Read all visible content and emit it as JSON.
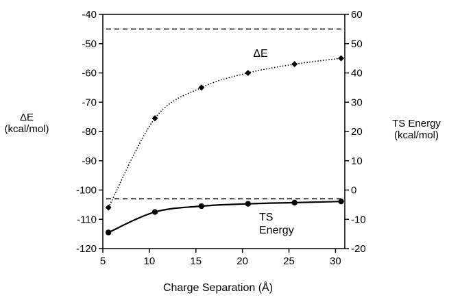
{
  "chart_data": {
    "type": "line",
    "xlabel": "Charge Separation (Å)",
    "xlim": [
      5,
      31
    ],
    "x_ticks": [
      5,
      10,
      15,
      20,
      25,
      30
    ],
    "y_left": {
      "label_line1": "ΔE",
      "label_line2": "(kcal/mol)",
      "lim": [
        -120,
        -40
      ],
      "ticks": [
        -120,
        -110,
        -100,
        -90,
        -80,
        -70,
        -60,
        -50,
        -40
      ]
    },
    "y_right": {
      "label_line1": "TS Energy",
      "label_line2": "(kcal/mol)",
      "lim": [
        -20,
        60
      ],
      "ticks": [
        -20,
        -10,
        0,
        10,
        20,
        30,
        40,
        50,
        60
      ]
    },
    "series": [
      {
        "name": "ΔE",
        "axis": "left",
        "style": "dotted",
        "marker": "diamond",
        "x": [
          5.6,
          10.6,
          15.6,
          20.6,
          25.6,
          30.6
        ],
        "y": [
          -106,
          -75.5,
          -65,
          -60,
          -57,
          -55
        ],
        "label_lines": [
          "ΔE"
        ]
      },
      {
        "name": "TS Energy",
        "axis": "right",
        "style": "solid",
        "marker": "circle",
        "x": [
          5.6,
          10.6,
          15.6,
          20.6,
          25.6,
          30.6
        ],
        "y": [
          -14.5,
          -7.5,
          -5.5,
          -4.7,
          -4.3,
          -3.9
        ],
        "label_lines": [
          "TS",
          "Energy"
        ]
      }
    ],
    "reference_lines": [
      {
        "axis": "left",
        "y": -45,
        "style": "dashed"
      },
      {
        "axis": "left",
        "y": -103,
        "style": "dashed"
      }
    ],
    "grid": false,
    "legend": "none"
  }
}
